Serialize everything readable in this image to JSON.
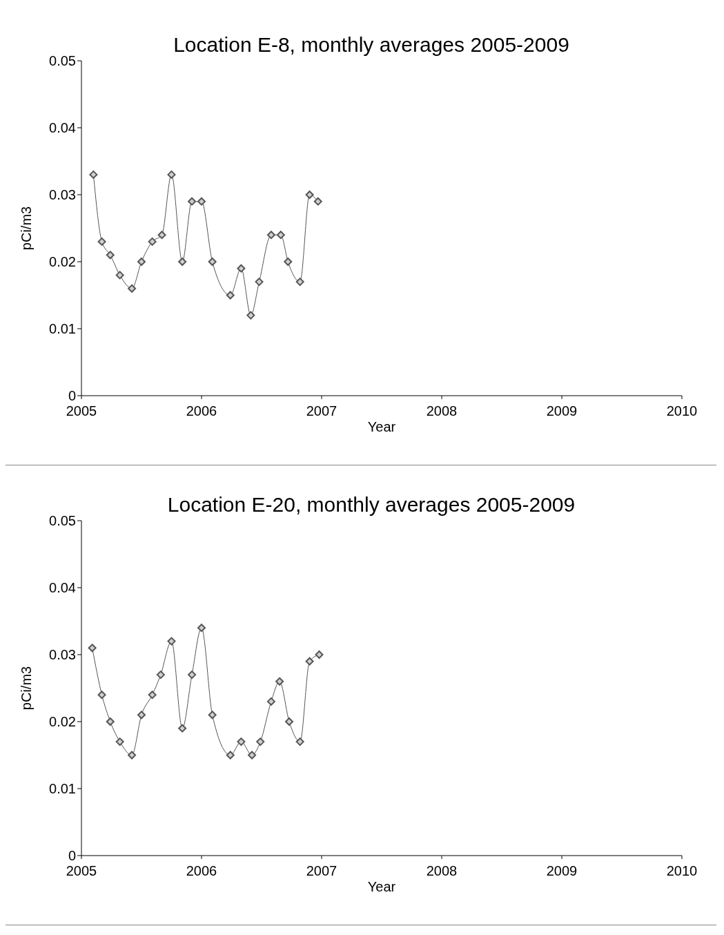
{
  "chart_data": [
    {
      "type": "line",
      "title": "Location E-8, monthly averages 2005-2009",
      "xlabel": "Year",
      "ylabel": "pCi/m3",
      "xlim": [
        2005,
        2010
      ],
      "xticks": [
        2005,
        2006,
        2007,
        2008,
        2009,
        2010
      ],
      "ylim": [
        0,
        0.05
      ],
      "yticks": [
        0,
        0.01,
        0.02,
        0.03,
        0.04,
        0.05
      ],
      "grid": false,
      "marker": "diamond",
      "line_style": "solid",
      "x": [
        2005.1,
        2005.17,
        2005.24,
        2005.32,
        2005.42,
        2005.5,
        2005.59,
        2005.67,
        2005.75,
        2005.84,
        2005.92,
        2006.0,
        2006.09,
        2006.24,
        2006.33,
        2006.41,
        2006.48,
        2006.58,
        2006.66,
        2006.72,
        2006.82,
        2006.9,
        2006.97
      ],
      "series": [
        {
          "color": "#555555",
          "values": [
            0.033,
            0.023,
            0.021,
            0.018,
            0.016,
            0.02,
            0.023,
            0.024,
            0.033,
            0.02,
            0.029,
            0.029,
            0.02,
            0.015,
            0.019,
            0.012,
            0.017,
            0.024,
            0.024,
            0.02,
            0.017,
            0.03,
            0.029
          ]
        }
      ]
    },
    {
      "type": "line",
      "title": "Location E-20, monthly averages 2005-2009",
      "xlabel": "Year",
      "ylabel": "pCi/m3",
      "xlim": [
        2005,
        2010
      ],
      "xticks": [
        2005,
        2006,
        2007,
        2008,
        2009,
        2010
      ],
      "ylim": [
        0,
        0.05
      ],
      "yticks": [
        0,
        0.01,
        0.02,
        0.03,
        0.04,
        0.05
      ],
      "grid": false,
      "marker": "diamond",
      "line_style": "solid",
      "x": [
        2005.09,
        2005.17,
        2005.24,
        2005.32,
        2005.42,
        2005.5,
        2005.59,
        2005.66,
        2005.75,
        2005.84,
        2005.92,
        2006.0,
        2006.09,
        2006.24,
        2006.33,
        2006.42,
        2006.49,
        2006.58,
        2006.65,
        2006.73,
        2006.82,
        2006.9,
        2006.98
      ],
      "series": [
        {
          "color": "#555555",
          "values": [
            0.031,
            0.024,
            0.02,
            0.017,
            0.015,
            0.021,
            0.024,
            0.027,
            0.032,
            0.019,
            0.027,
            0.034,
            0.021,
            0.015,
            0.017,
            0.015,
            0.017,
            0.023,
            0.026,
            0.02,
            0.017,
            0.029,
            0.03
          ]
        }
      ]
    }
  ]
}
